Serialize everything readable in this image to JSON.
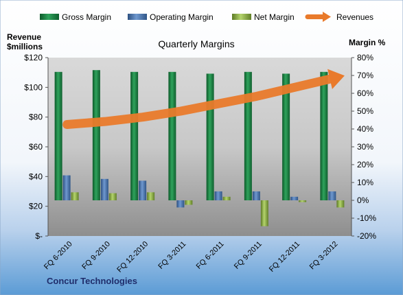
{
  "chart_data": {
    "type": "bar",
    "title": "Quarterly Margins",
    "footer": "Concur Technologies",
    "categories": [
      "FQ 6-2010",
      "FQ 9-2010",
      "FQ 12-2010",
      "FQ 3-2011",
      "FQ 6-2011",
      "FQ 9-2011",
      "FQ 12-2011",
      "FQ 3-2012"
    ],
    "left_axis": {
      "label_line1": "Revenue",
      "label_line2": "$millions",
      "ylim": [
        0,
        120
      ],
      "ticks": [
        0,
        20,
        40,
        60,
        80,
        100,
        120
      ],
      "tick_labels": [
        "$-",
        "$20",
        "$40",
        "$60",
        "$80",
        "$100",
        "$120"
      ]
    },
    "right_axis": {
      "label": "Margin %",
      "ylim": [
        -20,
        80
      ],
      "ticks": [
        -20,
        -10,
        0,
        10,
        20,
        30,
        40,
        50,
        60,
        70,
        80
      ],
      "tick_labels": [
        "-20%",
        "-10%",
        "0%",
        "10%",
        "20%",
        "30%",
        "40%",
        "50%",
        "60%",
        "70%",
        "80%"
      ]
    },
    "series": [
      {
        "name": "Gross Margin",
        "axis": "right",
        "kind": "bar",
        "color": "#1e8a4a",
        "values": [
          72,
          73,
          72,
          72,
          71,
          72,
          71,
          72
        ]
      },
      {
        "name": "Operating Margin",
        "axis": "right",
        "kind": "bar",
        "color": "#4f81bd",
        "values": [
          14,
          12,
          11,
          -4,
          5,
          5,
          2,
          5
        ]
      },
      {
        "name": "Net Margin",
        "axis": "right",
        "kind": "bar",
        "color": "#9bbb59",
        "values": [
          4.5,
          4,
          4.5,
          -2.5,
          2,
          -14.5,
          -1,
          -4
        ]
      },
      {
        "name": "Revenues",
        "axis": "left",
        "kind": "arrow",
        "color": "#e97a2b",
        "values": [
          75,
          77,
          80,
          84,
          89,
          94,
          100,
          106
        ]
      }
    ],
    "colors": {
      "background_top": "#ffffff",
      "background_bottom": "#5b9bd5",
      "plot_bg": "#c8c8c8"
    }
  }
}
